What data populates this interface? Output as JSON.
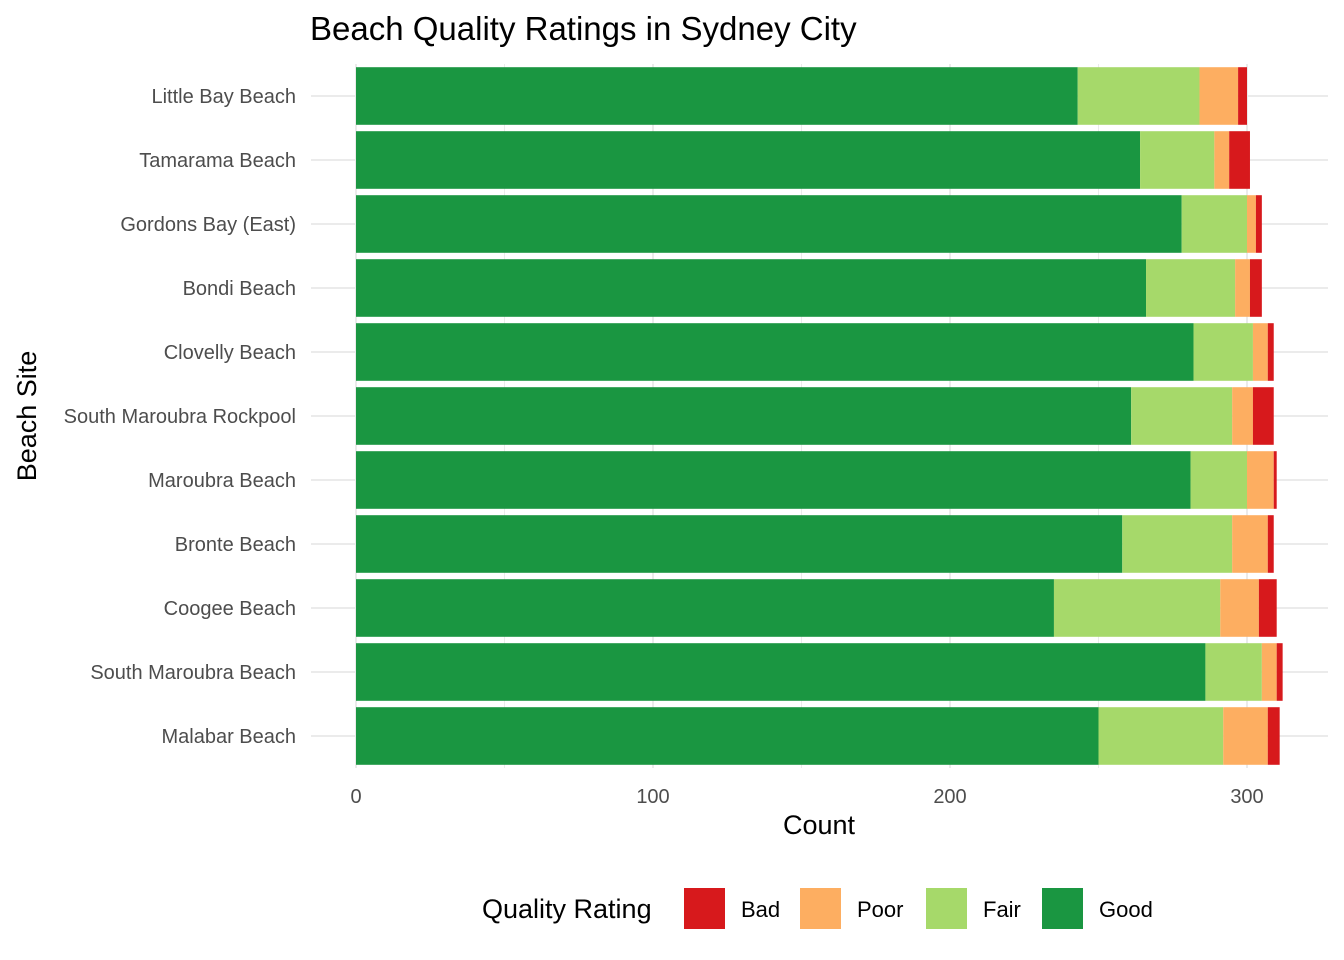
{
  "chart_data": {
    "type": "bar",
    "orientation": "horizontal",
    "stacked": true,
    "title": "Beach Quality Ratings in Sydney City",
    "xlabel": "Count",
    "ylabel": "Beach Site",
    "xlim": [
      0,
      325
    ],
    "xticks": [
      0,
      100,
      200,
      300
    ],
    "grid": true,
    "legend_position": "bottom",
    "legend_title": "Quality Rating",
    "categories": [
      "Little Bay Beach",
      "Tamarama Beach",
      "Gordons Bay (East)",
      "Bondi Beach",
      "Clovelly Beach",
      "South Maroubra Rockpool",
      "Maroubra Beach",
      "Bronte Beach",
      "Coogee Beach",
      "South Maroubra Beach",
      "Malabar Beach"
    ],
    "series": [
      {
        "name": "Good",
        "color": "#1a9641",
        "values": [
          243,
          264,
          278,
          266,
          282,
          261,
          281,
          258,
          235,
          286,
          250
        ]
      },
      {
        "name": "Fair",
        "color": "#a6d96a",
        "values": [
          41,
          25,
          22,
          30,
          20,
          34,
          19,
          37,
          56,
          19,
          42
        ]
      },
      {
        "name": "Poor",
        "color": "#fdae61",
        "values": [
          13,
          5,
          3,
          5,
          5,
          7,
          9,
          12,
          13,
          5,
          15
        ]
      },
      {
        "name": "Bad",
        "color": "#d7191c",
        "values": [
          3,
          7,
          2,
          4,
          2,
          7,
          1,
          2,
          6,
          2,
          4
        ]
      }
    ],
    "legend_order": [
      "Bad",
      "Poor",
      "Fair",
      "Good"
    ]
  }
}
